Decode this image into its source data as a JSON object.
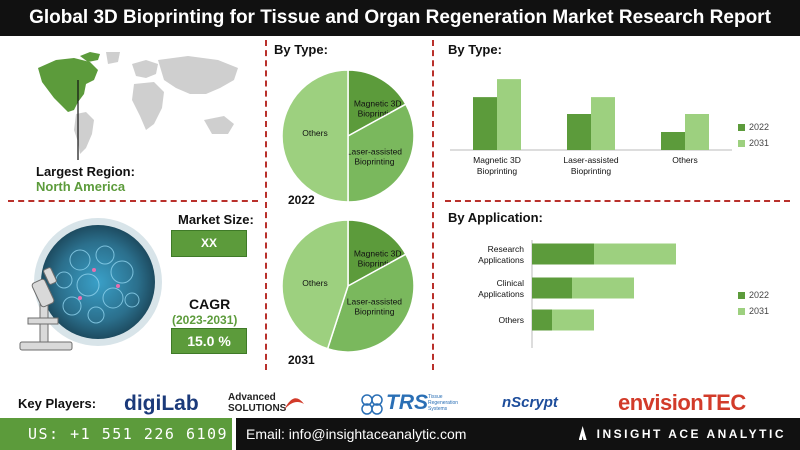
{
  "header": {
    "title": "Global 3D Bioprinting for Tissue and Organ Regeneration Market Research Report"
  },
  "region": {
    "label": "Largest Region:",
    "value": "North America"
  },
  "market": {
    "size_label": "Market Size:",
    "size_value": "XX",
    "cagr_label": "CAGR",
    "cagr_period": "(2023-2031)",
    "cagr_value": "15.0 %"
  },
  "colors": {
    "dark_green": "#5c9b3b",
    "light_green": "#9dd07f",
    "mid_green": "#7ab85d",
    "accent_red": "#b9302b"
  },
  "key_players": {
    "label": "Key Players:",
    "logos": [
      {
        "name": "digiLab"
      },
      {
        "name": "Advanced SOLUTIONS"
      },
      {
        "name": "TRS",
        "tagline": "Tissue Regeneration Systems"
      },
      {
        "name": "nScrypt"
      },
      {
        "name": "envisionTEC"
      }
    ]
  },
  "footer": {
    "phone": "US: +1 551 226 6109",
    "email": "Email: info@insightaceanalytic.com",
    "brand": "INSIGHT ACE ANALYTIC"
  },
  "chart_data": [
    {
      "type": "pie",
      "title": "By Type:",
      "year": "2022",
      "labels": [
        "Magnetic 3D Bioprinting",
        "Laser-assisted Bioprinting",
        "Others"
      ],
      "values": [
        17,
        33,
        50
      ]
    },
    {
      "type": "pie",
      "year": "2031",
      "labels": [
        "Magnetic 3D Bioprinting",
        "Laser-assisted Bioprinting",
        "Others"
      ],
      "values": [
        17,
        38,
        45
      ]
    },
    {
      "type": "bar",
      "title": "By Type:",
      "categories": [
        "Magnetic 3D Bioprinting",
        "Laser-assisted Bioprinting",
        "Others"
      ],
      "series": [
        {
          "name": "2022",
          "values": [
            47,
            32,
            16
          ]
        },
        {
          "name": "2031",
          "values": [
            63,
            47,
            32
          ]
        }
      ],
      "ylim": [
        0,
        80
      ],
      "legend": "right"
    },
    {
      "type": "bar",
      "orientation": "horizontal",
      "stacked": true,
      "title": "By Application:",
      "categories": [
        "Research Applications",
        "Clinical Applications",
        "Others"
      ],
      "series": [
        {
          "name": "2022",
          "values": [
            31,
            20,
            10
          ]
        },
        {
          "name": "2031",
          "values": [
            41,
            31,
            21
          ]
        }
      ],
      "legend": "right"
    }
  ]
}
